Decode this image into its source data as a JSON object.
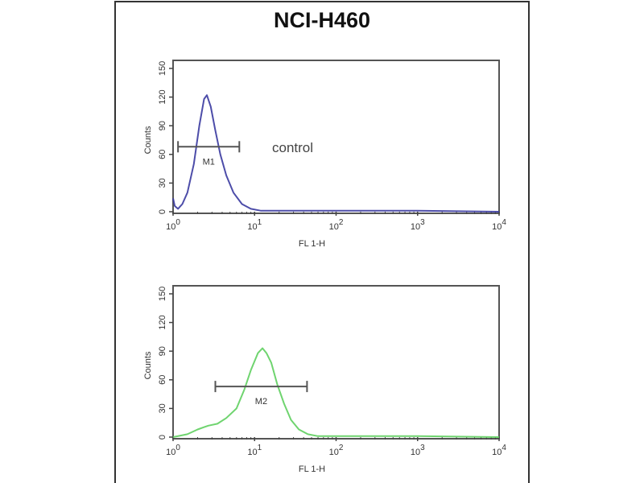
{
  "chart_data": {
    "title": "NCI-H460",
    "panels": [
      {
        "type": "area",
        "xscale": "log",
        "xlim": [
          1,
          10000
        ],
        "ylim": [
          0,
          150
        ],
        "xlabel": "FL 1-H",
        "ylabel": "Counts",
        "xticks": [
          "10^0",
          "10^1",
          "10^2",
          "10^3",
          "10^4"
        ],
        "yticks": [
          "0",
          "30",
          "60",
          "90",
          "120",
          "150"
        ],
        "annotation": "control",
        "color": "#3a3aa0",
        "marker": {
          "label": "M1",
          "range": [
            1.15,
            6.5
          ],
          "level": 68
        },
        "x": [
          1.0,
          1.05,
          1.15,
          1.3,
          1.5,
          1.8,
          2.1,
          2.4,
          2.6,
          2.9,
          3.3,
          3.8,
          4.5,
          5.5,
          7,
          9,
          12,
          30,
          100,
          1000,
          10000
        ],
        "y": [
          14,
          6,
          3,
          8,
          20,
          50,
          90,
          118,
          122,
          110,
          85,
          60,
          38,
          20,
          8,
          3,
          1,
          1,
          1,
          1,
          0
        ]
      },
      {
        "type": "area",
        "xscale": "log",
        "xlim": [
          1,
          10000
        ],
        "ylim": [
          0,
          150
        ],
        "xlabel": "FL 1-H",
        "ylabel": "Counts",
        "xticks": [
          "10^0",
          "10^1",
          "10^2",
          "10^3",
          "10^4"
        ],
        "yticks": [
          "0",
          "30",
          "60",
          "90",
          "120",
          "150"
        ],
        "color": "#5fcf5f",
        "marker": {
          "label": "M2",
          "range": [
            3.3,
            44
          ],
          "level": 53
        },
        "x": [
          1.0,
          1.5,
          2.0,
          2.7,
          3.5,
          4.5,
          6,
          7.5,
          9,
          11,
          12.5,
          14,
          16,
          19,
          23,
          28,
          35,
          45,
          60,
          100,
          1000,
          10000
        ],
        "y": [
          0,
          3,
          8,
          12,
          14,
          20,
          30,
          50,
          70,
          88,
          93,
          88,
          78,
          55,
          35,
          18,
          8,
          3,
          1,
          1,
          1,
          0
        ]
      }
    ]
  }
}
